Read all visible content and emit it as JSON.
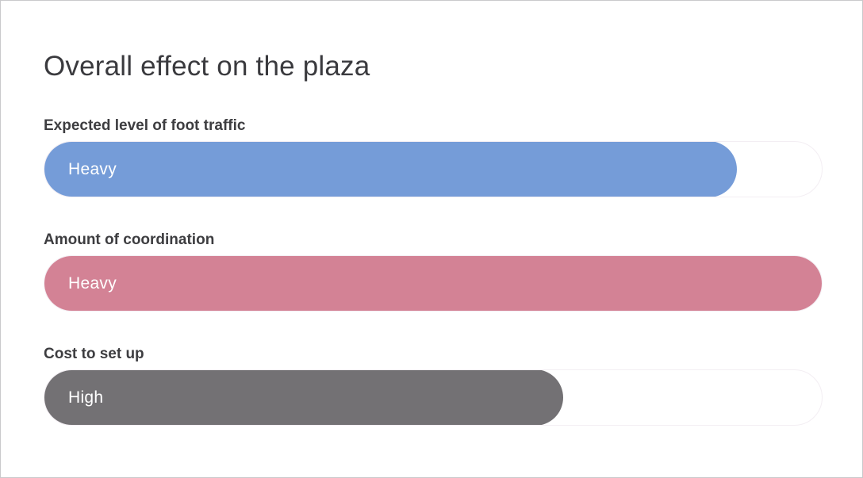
{
  "page": {
    "title": "Overall effect on the plaza"
  },
  "metrics": [
    {
      "label": "Expected level of foot traffic",
      "value_label": "Heavy",
      "level": 0.89,
      "color": "#759cd8"
    },
    {
      "label": "Amount of coordination",
      "value_label": "Heavy",
      "level": 1.0,
      "color": "#d38295"
    },
    {
      "label": "Cost to set up",
      "value_label": "High",
      "level": 0.667,
      "color": "#737174"
    }
  ]
}
